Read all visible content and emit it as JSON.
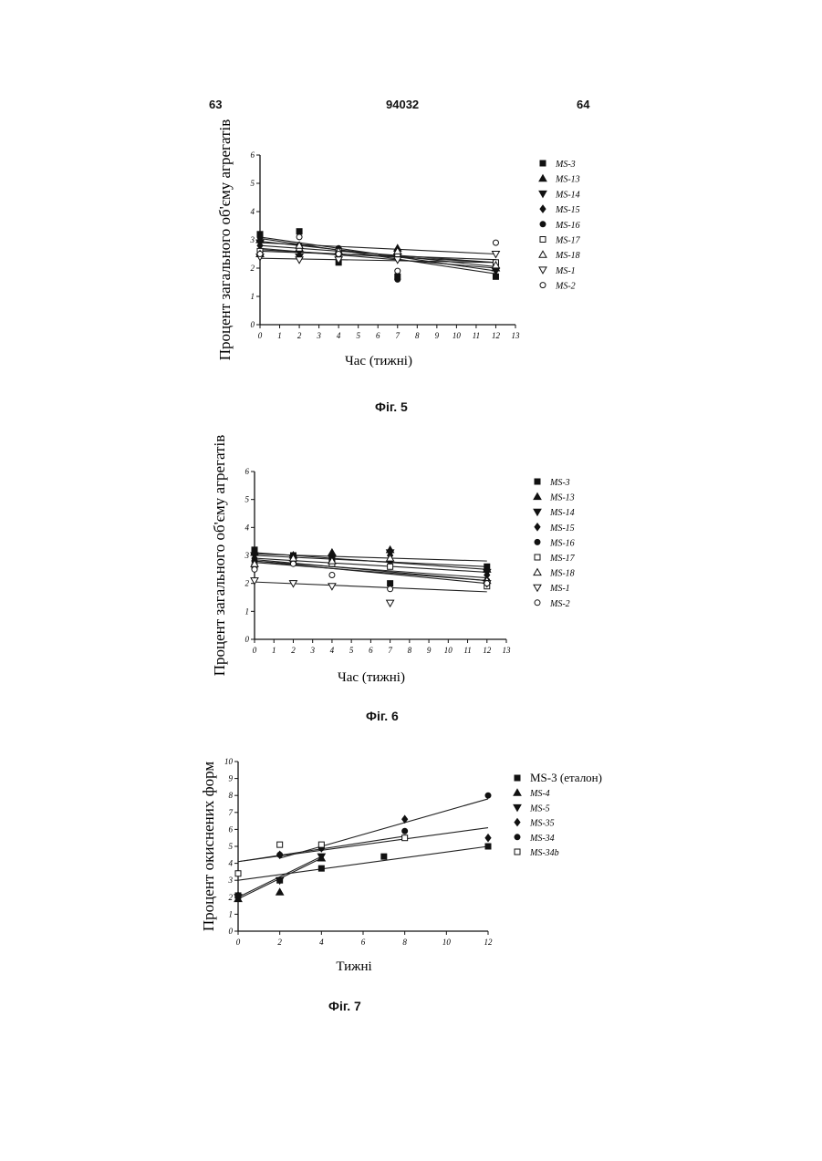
{
  "header": {
    "left": "63",
    "center": "94032",
    "right": "64"
  },
  "charts": [
    {
      "caption": "Фіг. 5",
      "chart_data": {
        "type": "scatter",
        "xlabel": "Час (тижні)",
        "ylabel": "Процент загального об'єму агрегатів",
        "xticks": [
          "0",
          "1",
          "2",
          "3",
          "4",
          "5",
          "6",
          "7",
          "8",
          "9",
          "10",
          "11",
          "12",
          "13"
        ],
        "yticks": [
          "0",
          "1",
          "2",
          "3",
          "4",
          "5",
          "6"
        ],
        "xlim": [
          0,
          13
        ],
        "ylim": [
          0,
          6
        ],
        "trendlines": true,
        "series": [
          {
            "name": "MS-3",
            "marker": "square-filled",
            "x": [
              0,
              2,
              4,
              7,
              12
            ],
            "y": [
              3.2,
              3.3,
              2.2,
              1.7,
              1.7
            ],
            "fit": [
              3.05,
              1.8
            ]
          },
          {
            "name": "MS-13",
            "marker": "triangle-up-filled",
            "x": [
              0,
              2,
              4,
              7,
              12
            ],
            "y": [
              3.0,
              2.7,
              2.6,
              2.7,
              2.0
            ],
            "fit": [
              2.95,
              2.05
            ]
          },
          {
            "name": "MS-14",
            "marker": "triangle-down-filled",
            "x": [
              0,
              2,
              4,
              7,
              12
            ],
            "y": [
              2.9,
              2.4,
              2.4,
              2.4,
              1.9
            ],
            "fit": [
              2.7,
              2.0
            ]
          },
          {
            "name": "MS-15",
            "marker": "diamond-filled",
            "x": [
              0,
              2,
              4,
              7,
              12
            ],
            "y": [
              2.8,
              2.6,
              2.5,
              2.5,
              2.1
            ],
            "fit": [
              2.8,
              2.2
            ]
          },
          {
            "name": "MS-16",
            "marker": "circle-filled",
            "x": [
              0,
              2,
              4,
              7,
              12
            ],
            "y": [
              3.1,
              2.8,
              2.7,
              1.6,
              2.2
            ],
            "fit": [
              3.1,
              1.9
            ]
          },
          {
            "name": "MS-17",
            "marker": "square-open",
            "x": [
              0,
              2,
              4,
              7,
              12
            ],
            "y": [
              2.6,
              2.7,
              2.6,
              2.5,
              2.2
            ],
            "fit": [
              2.65,
              2.2
            ]
          },
          {
            "name": "MS-18",
            "marker": "triangle-up-open",
            "x": [
              0,
              2,
              4,
              7,
              12
            ],
            "y": [
              2.5,
              2.8,
              2.6,
              2.6,
              2.1
            ],
            "fit": [
              2.6,
              2.3
            ]
          },
          {
            "name": "MS-1",
            "marker": "triangle-down-open",
            "x": [
              0,
              2,
              4,
              7,
              12
            ],
            "y": [
              2.4,
              2.3,
              2.3,
              2.3,
              2.5
            ],
            "fit": [
              2.35,
              2.2
            ]
          },
          {
            "name": "MS-2",
            "marker": "circle-open",
            "x": [
              0,
              2,
              4,
              7,
              12
            ],
            "y": [
              2.5,
              3.1,
              2.5,
              1.9,
              2.9
            ],
            "fit": [
              2.9,
              2.5
            ]
          }
        ]
      }
    },
    {
      "caption": "Фіг. 6",
      "chart_data": {
        "type": "scatter",
        "xlabel": "Час (тижні)",
        "ylabel": "Процент загального об'єму агрегатів",
        "xticks": [
          "0",
          "1",
          "2",
          "3",
          "4",
          "5",
          "6",
          "7",
          "8",
          "9",
          "10",
          "11",
          "12",
          "13"
        ],
        "yticks": [
          "0",
          "1",
          "2",
          "3",
          "4",
          "5",
          "6"
        ],
        "xlim": [
          0,
          13
        ],
        "ylim": [
          0,
          6
        ],
        "trendlines": true,
        "series": [
          {
            "name": "MS-3",
            "marker": "square-filled",
            "x": [
              0,
              2,
              4,
              7,
              12
            ],
            "y": [
              3.2,
              3.0,
              2.9,
              2.0,
              2.6
            ],
            "fit": [
              3.1,
              2.5
            ]
          },
          {
            "name": "MS-13",
            "marker": "triangle-up-filled",
            "x": [
              0,
              2,
              4,
              7,
              12
            ],
            "y": [
              3.1,
              3.0,
              3.1,
              3.2,
              2.5
            ],
            "fit": [
              3.05,
              2.8
            ]
          },
          {
            "name": "MS-14",
            "marker": "triangle-down-filled",
            "x": [
              0,
              2,
              4,
              7,
              12
            ],
            "y": [
              3.0,
              2.9,
              2.9,
              3.1,
              2.4
            ],
            "fit": [
              3.0,
              2.6
            ]
          },
          {
            "name": "MS-15",
            "marker": "diamond-filled",
            "x": [
              0,
              2,
              4,
              7,
              12
            ],
            "y": [
              2.9,
              2.9,
              2.8,
              3.0,
              2.3
            ],
            "fit": [
              2.9,
              2.4
            ]
          },
          {
            "name": "MS-16",
            "marker": "circle-filled",
            "x": [
              0,
              2,
              4,
              7,
              12
            ],
            "y": [
              2.8,
              2.8,
              2.7,
              2.8,
              2.1
            ],
            "fit": [
              2.85,
              2.1
            ]
          },
          {
            "name": "MS-17",
            "marker": "square-open",
            "x": [
              0,
              2,
              4,
              7,
              12
            ],
            "y": [
              2.6,
              2.8,
              2.7,
              2.6,
              1.9
            ],
            "fit": [
              2.8,
              2.0
            ]
          },
          {
            "name": "MS-18",
            "marker": "triangle-up-open",
            "x": [
              0,
              2,
              4,
              7,
              12
            ],
            "y": [
              2.7,
              2.9,
              2.8,
              2.9,
              2.1
            ],
            "fit": [
              2.8,
              2.2
            ]
          },
          {
            "name": "MS-1",
            "marker": "triangle-down-open",
            "x": [
              0,
              2,
              4,
              7,
              12
            ],
            "y": [
              2.1,
              2.0,
              1.9,
              1.3,
              2.0
            ],
            "fit": [
              2.05,
              1.7
            ]
          },
          {
            "name": "MS-2",
            "marker": "circle-open",
            "x": [
              0,
              2,
              4,
              7,
              12
            ],
            "y": [
              2.5,
              2.7,
              2.3,
              1.8,
              2.0
            ],
            "fit": [
              2.75,
              2.1
            ]
          }
        ]
      }
    },
    {
      "caption": "Фіг. 7",
      "chart_data": {
        "type": "scatter",
        "xlabel": "Тижні",
        "ylabel": "Процент окиснених форм",
        "xticks": [
          "0",
          "2",
          "4",
          "6",
          "8",
          "10",
          "12"
        ],
        "yticks": [
          "0",
          "1",
          "2",
          "3",
          "4",
          "5",
          "6",
          "7",
          "8",
          "9",
          "10"
        ],
        "xlim": [
          0,
          12
        ],
        "ylim": [
          0,
          10
        ],
        "trendlines": true,
        "series": [
          {
            "name": "MS-3 (еталон)",
            "marker": "square-filled",
            "x": [
              0,
              2,
              4,
              7,
              12
            ],
            "y": [
              2.1,
              3.0,
              3.7,
              4.4,
              5.0
            ],
            "fit": [
              3.0,
              5.0
            ],
            "legend_style": "big"
          },
          {
            "name": "MS-4",
            "marker": "triangle-up-filled",
            "x": [
              0,
              2,
              4
            ],
            "y": [
              1.9,
              2.3,
              4.3
            ],
            "fit": [
              1.9,
              4.3
            ]
          },
          {
            "name": "MS-5",
            "marker": "triangle-down-filled",
            "x": [
              0,
              2,
              4
            ],
            "y": [
              2.0,
              3.0,
              4.4
            ],
            "fit": [
              2.0,
              4.4
            ]
          },
          {
            "name": "MS-35",
            "marker": "diamond-filled",
            "x": [
              0,
              2,
              4,
              8,
              12
            ],
            "y": [
              2.1,
              4.5,
              4.9,
              6.6,
              5.5
            ],
            "fit": [
              4.1,
              6.1
            ]
          },
          {
            "name": "MS-34",
            "marker": "circle-filled",
            "x": [
              2,
              4,
              8,
              12
            ],
            "y": [
              4.5,
              4.9,
              5.9,
              8.0
            ],
            "fit": [
              4.3,
              7.8
            ],
            "fit_from": 2
          },
          {
            "name": "MS-34b",
            "marker": "square-open",
            "x": [
              0,
              2,
              4,
              8
            ],
            "y": [
              3.4,
              5.1,
              5.1,
              5.5
            ],
            "fit": [
              4.1,
              5.6
            ],
            "fit_to": 8
          }
        ]
      }
    }
  ]
}
